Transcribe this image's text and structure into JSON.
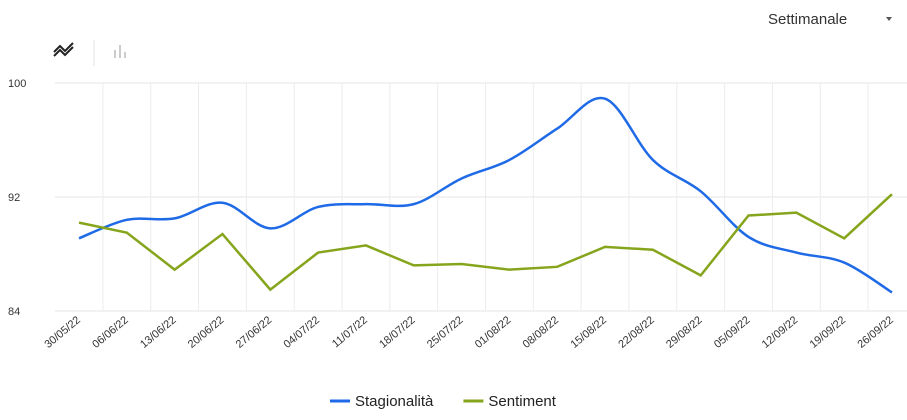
{
  "controls": {
    "period": "Settimanale"
  },
  "chart_data": {
    "type": "line",
    "categories": [
      "30/05/22",
      "06/06/22",
      "13/06/22",
      "20/06/22",
      "27/06/22",
      "04/07/22",
      "11/07/22",
      "18/07/22",
      "25/07/22",
      "01/08/22",
      "08/08/22",
      "15/08/22",
      "22/08/22",
      "29/08/22",
      "05/09/22",
      "12/09/22",
      "19/09/22",
      "26/09/22"
    ],
    "series": [
      {
        "name": "Stagionalità",
        "color": "#1f6ae6",
        "smooth": true,
        "values": [
          89.1,
          90.4,
          90.5,
          91.6,
          89.8,
          91.3,
          91.5,
          91.5,
          93.3,
          94.6,
          96.8,
          98.9,
          94.6,
          92.4,
          89.2,
          88.1,
          87.4,
          85.3
        ]
      },
      {
        "name": "Sentiment",
        "color": "#86a51c",
        "smooth": false,
        "values": [
          90.2,
          89.5,
          86.9,
          89.4,
          85.5,
          88.1,
          88.6,
          87.2,
          87.3,
          86.9,
          87.1,
          88.5,
          88.3,
          86.5,
          90.7,
          90.9,
          89.1,
          92.2
        ]
      }
    ],
    "ylim": [
      84,
      100
    ],
    "yticks": [
      84,
      92,
      100
    ],
    "grid": true,
    "legend": "bottom"
  }
}
